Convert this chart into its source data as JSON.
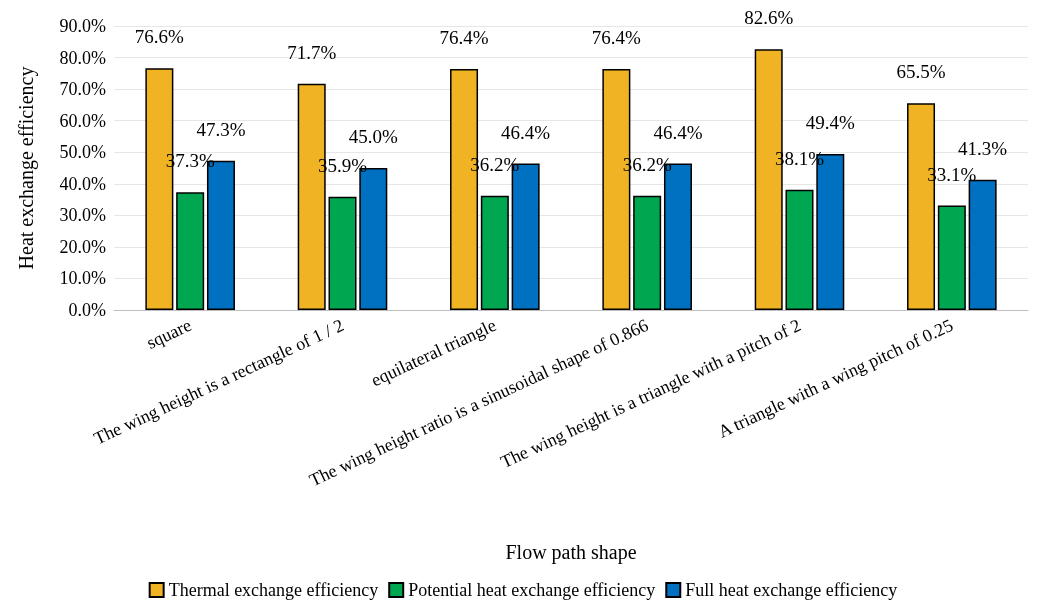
{
  "chart_data": {
    "type": "bar",
    "xlabel": "Flow path shape",
    "ylabel": "Heat exchange efficiency",
    "categories": [
      "square",
      "The wing height is a rectangle of 1 / 2",
      "equilateral triangle",
      "The wing height ratio is a sinusoidal shape of 0.866",
      "The wing height is a triangle with a pitch of 2",
      "A triangle with a wing pitch of 0.25"
    ],
    "series": [
      {
        "name": "Thermal exchange efficiency",
        "color": "#f0b323",
        "values": [
          76.6,
          71.7,
          76.4,
          76.4,
          82.6,
          65.5
        ],
        "value_labels": [
          "76.6%",
          "71.7%",
          "76.4%",
          "76.4%",
          "82.6%",
          "65.5%"
        ]
      },
      {
        "name": "Potential heat exchange efficiency",
        "color": "#00a650",
        "values": [
          37.3,
          35.9,
          36.2,
          36.2,
          38.1,
          33.1
        ],
        "value_labels": [
          "37.3%",
          "35.9%",
          "36.2%",
          "36.2%",
          "38.1%",
          "33.1%"
        ]
      },
      {
        "name": "Full heat exchange efficiency",
        "color": "#0070c0",
        "values": [
          47.3,
          45.0,
          46.4,
          46.4,
          49.4,
          41.3
        ],
        "value_labels": [
          "47.3%",
          "45.0%",
          "46.4%",
          "46.4%",
          "49.4%",
          "41.3%"
        ]
      }
    ],
    "ylim": [
      0,
      90
    ],
    "yticks": [
      {
        "value": 0,
        "label": "0.0%"
      },
      {
        "value": 10,
        "label": "10.0%"
      },
      {
        "value": 20,
        "label": "20.0%"
      },
      {
        "value": 30,
        "label": "30.0%"
      },
      {
        "value": 40,
        "label": "40.0%"
      },
      {
        "value": 50,
        "label": "50.0%"
      },
      {
        "value": 60,
        "label": "60.0%"
      },
      {
        "value": 70,
        "label": "70.0%"
      },
      {
        "value": 80,
        "label": "80.0%"
      },
      {
        "value": 90,
        "label": "90.0%"
      }
    ],
    "grid": "y",
    "legend": "bottom"
  }
}
